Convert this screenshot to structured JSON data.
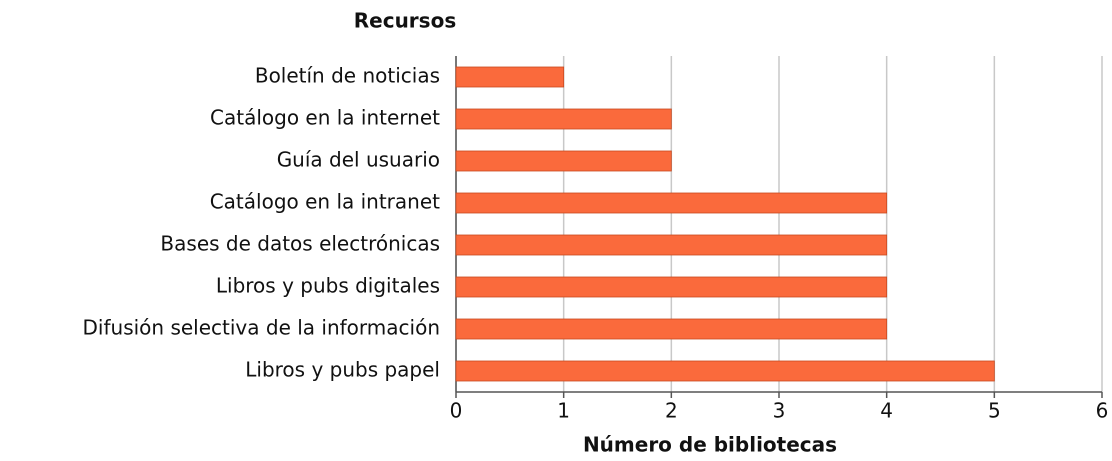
{
  "chart_data": {
    "type": "bar",
    "orientation": "horizontal",
    "ylabel": "Recursos",
    "xlabel": "Número de bibliotecas",
    "categories": [
      "Boletín de noticias",
      "Catálogo en la internet",
      "Guía del usuario",
      "Catálogo en la intranet",
      "Bases de datos electrónicas",
      "Libros y pubs digitales",
      "Difusión selectiva de la información",
      "Libros y pubs papel"
    ],
    "values": [
      1,
      2,
      2,
      4,
      4,
      4,
      4,
      5
    ],
    "color": "#fa6a3c",
    "xlim": [
      0,
      6
    ],
    "xticks": [
      0,
      1,
      2,
      3,
      4,
      5,
      6
    ],
    "grid": true
  }
}
